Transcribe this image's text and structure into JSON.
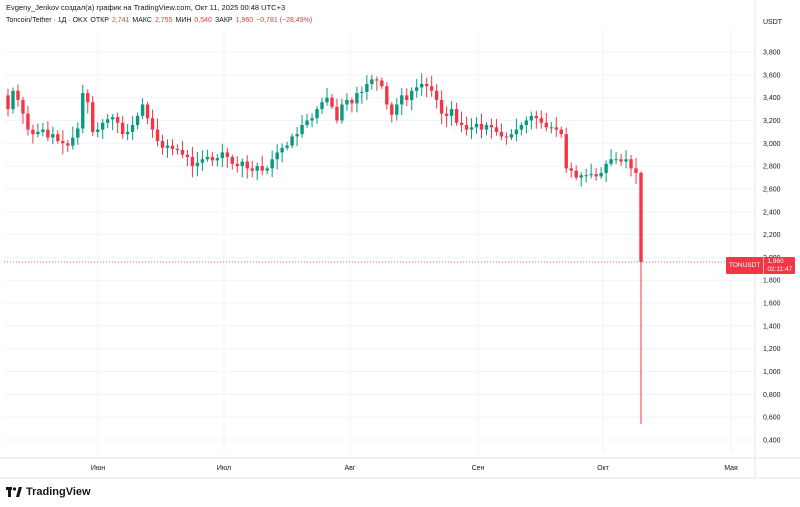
{
  "header": {
    "caption": "Evgeny_Jenkov создал(а) график на TradingView.com, Окт 11, 2025 00:48 UTC+3"
  },
  "legend": {
    "symbol": "Toncoin/Tether · 1Д · OKX",
    "open_label": "ОТКР",
    "open_value": "2,741",
    "high_label": "МАКС",
    "high_value": "2,755",
    "low_label": "МИН",
    "low_value": "0,540",
    "close_label": "ЗАКР",
    "close_value": "1,960",
    "change": "−0,781 (−28,49%)"
  },
  "price_tag": {
    "symbol": "TONUSDT",
    "price": "1,960",
    "countdown": "02:11:47"
  },
  "currency": "USDT",
  "brand": {
    "name": "TradingView"
  },
  "colors": {
    "up": "#089981",
    "down": "#f23645",
    "grid": "#f0f3fa",
    "text": "#131722"
  },
  "chart_data": {
    "type": "candlestick",
    "title": "Toncoin/Tether · 1Д · OKX",
    "y_unit": "USDT",
    "ylim": [
      0.25,
      3.95
    ],
    "grid": true,
    "y_ticks": [
      "0,400",
      "0,600",
      "0,800",
      "1,000",
      "1,200",
      "1,400",
      "1,600",
      "1,800",
      "2,000",
      "2,200",
      "2,400",
      "2,600",
      "2,800",
      "3,000",
      "3,200",
      "3,400",
      "3,600",
      "3,800"
    ],
    "x_ticks": [
      "Июн",
      "Июл",
      "Авг",
      "Сен",
      "Окт",
      "Мая"
    ],
    "current_price": 1.96,
    "closes": [
      3.3,
      3.46,
      3.38,
      3.26,
      3.12,
      3.08,
      3.1,
      3.12,
      3.05,
      3.08,
      3.02,
      3.0,
      2.98,
      3.05,
      3.13,
      3.44,
      3.36,
      3.1,
      3.12,
      3.18,
      3.21,
      3.23,
      3.18,
      3.08,
      3.1,
      3.16,
      3.24,
      3.34,
      3.22,
      3.12,
      3.02,
      2.96,
      2.98,
      2.95,
      2.94,
      2.9,
      2.88,
      2.8,
      2.83,
      2.86,
      2.88,
      2.85,
      2.87,
      2.92,
      2.88,
      2.82,
      2.8,
      2.84,
      2.78,
      2.76,
      2.8,
      2.76,
      2.78,
      2.86,
      2.92,
      2.96,
      2.98,
      3.06,
      3.08,
      3.16,
      3.2,
      3.22,
      3.3,
      3.36,
      3.4,
      3.32,
      3.2,
      3.34,
      3.38,
      3.35,
      3.44,
      3.45,
      3.52,
      3.56,
      3.55,
      3.5,
      3.34,
      3.25,
      3.34,
      3.42,
      3.38,
      3.46,
      3.49,
      3.52,
      3.5,
      3.46,
      3.38,
      3.26,
      3.24,
      3.3,
      3.18,
      3.16,
      3.12,
      3.14,
      3.17,
      3.12,
      3.16,
      3.14,
      3.1,
      3.06,
      3.05,
      3.08,
      3.12,
      3.16,
      3.2,
      3.24,
      3.22,
      3.18,
      3.14,
      3.14,
      3.12,
      3.08,
      2.78,
      2.76,
      2.7,
      2.72,
      2.72,
      2.73,
      2.71,
      2.74,
      2.82,
      2.86,
      2.86,
      2.84,
      2.86,
      2.78,
      2.74,
      1.96
    ],
    "highs_note": "final candle: open 2,741 high 2,755 low 0,540 close 1,960"
  }
}
